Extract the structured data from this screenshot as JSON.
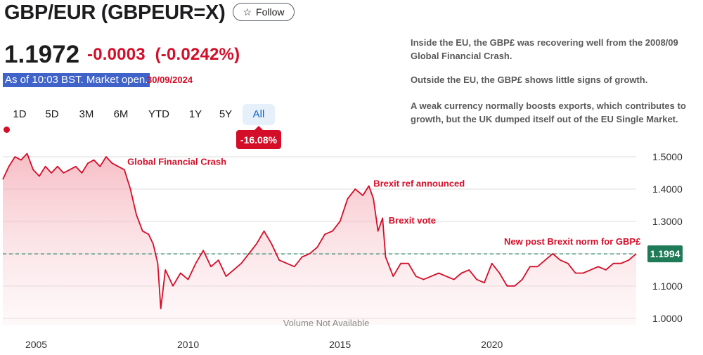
{
  "header": {
    "title": "GBP/EUR (GBPEUR=X)",
    "follow_label": "Follow"
  },
  "quote": {
    "price": "1.1972",
    "change": "-0.0003",
    "change_pct": "(-0.0242%)",
    "as_of": "As of 10:03 BST. Market open.",
    "date": "30/09/2024"
  },
  "notes": [
    "Inside the EU, the GBP£ was recovering well from the 2008/09",
    "Global Financial Crash.",
    "Outside the EU, the GBP£ shows little signs of growth.",
    "A weak currency normally boosts exports, which contributes to",
    "growth, but the UK dumped itself out of the EU Single Market."
  ],
  "tabs": [
    {
      "label": "1D",
      "active": false
    },
    {
      "label": "5D",
      "active": false
    },
    {
      "label": "3M",
      "active": false
    },
    {
      "label": "6M",
      "active": false
    },
    {
      "label": "YTD",
      "active": false
    },
    {
      "label": "1Y",
      "active": false
    },
    {
      "label": "5Y",
      "active": false
    },
    {
      "label": "All",
      "active": true
    }
  ],
  "period_change": "-16.08%",
  "colors": {
    "line": "#d40d28",
    "fill": "#f7c9cf",
    "reference": "#2e8b6e",
    "current_label_bg": "#1f7a57",
    "grid": "#dcdcdc"
  },
  "chart_data": {
    "type": "area",
    "x_type": "year",
    "xlim": [
      2003.9,
      2024.75
    ],
    "ylim": [
      0.98,
      1.55
    ],
    "y_ticks": [
      "1.5000",
      "1.4000",
      "1.3000",
      "1.2000",
      "1.1000",
      "1.0000"
    ],
    "y_tick_values": [
      1.5,
      1.4,
      1.3,
      1.2,
      1.1,
      1.0
    ],
    "x_ticks": [
      "2005",
      "2010",
      "2015",
      "2020"
    ],
    "x_tick_values": [
      2005,
      2010,
      2015,
      2020
    ],
    "grid": true,
    "reference_line": 1.1994,
    "current_value_label": "1.1994",
    "volume_label": "Volume Not Available",
    "series": [
      {
        "x": [
          2003.9,
          2004.1,
          2004.3,
          2004.5,
          2004.7,
          2004.9,
          2005.1,
          2005.3,
          2005.5,
          2005.7,
          2005.9,
          2006.1,
          2006.3,
          2006.5,
          2006.7,
          2006.9,
          2007.1,
          2007.3,
          2007.5,
          2007.7,
          2007.9,
          2008.1,
          2008.3,
          2008.5,
          2008.7,
          2008.85,
          2009.0,
          2009.1,
          2009.25,
          2009.5,
          2009.75,
          2010.0,
          2010.25,
          2010.5,
          2010.75,
          2011.0,
          2011.25,
          2011.5,
          2011.75,
          2012.0,
          2012.25,
          2012.5,
          2012.75,
          2013.0,
          2013.25,
          2013.5,
          2013.75,
          2014.0,
          2014.25,
          2014.5,
          2014.75,
          2015.0,
          2015.25,
          2015.5,
          2015.75,
          2015.95,
          2016.1,
          2016.25,
          2016.4,
          2016.5,
          2016.75,
          2017.0,
          2017.25,
          2017.5,
          2017.75,
          2018.0,
          2018.25,
          2018.5,
          2018.75,
          2019.0,
          2019.25,
          2019.5,
          2019.75,
          2020.0,
          2020.25,
          2020.5,
          2020.75,
          2021.0,
          2021.25,
          2021.5,
          2021.75,
          2022.0,
          2022.25,
          2022.5,
          2022.75,
          2023.0,
          2023.25,
          2023.5,
          2023.75,
          2024.0,
          2024.25,
          2024.5,
          2024.75
        ],
        "y": [
          1.43,
          1.47,
          1.5,
          1.49,
          1.51,
          1.46,
          1.44,
          1.47,
          1.45,
          1.47,
          1.45,
          1.46,
          1.47,
          1.45,
          1.48,
          1.49,
          1.47,
          1.5,
          1.48,
          1.47,
          1.46,
          1.4,
          1.32,
          1.27,
          1.26,
          1.23,
          1.17,
          1.03,
          1.15,
          1.1,
          1.14,
          1.12,
          1.17,
          1.21,
          1.16,
          1.18,
          1.13,
          1.15,
          1.17,
          1.2,
          1.23,
          1.27,
          1.23,
          1.18,
          1.17,
          1.16,
          1.19,
          1.2,
          1.22,
          1.26,
          1.27,
          1.3,
          1.37,
          1.4,
          1.38,
          1.41,
          1.37,
          1.27,
          1.31,
          1.19,
          1.13,
          1.17,
          1.17,
          1.13,
          1.12,
          1.13,
          1.14,
          1.13,
          1.12,
          1.14,
          1.15,
          1.12,
          1.11,
          1.17,
          1.14,
          1.1,
          1.1,
          1.12,
          1.16,
          1.16,
          1.18,
          1.2,
          1.18,
          1.17,
          1.14,
          1.14,
          1.15,
          1.16,
          1.15,
          1.17,
          1.17,
          1.18,
          1.2
        ]
      }
    ],
    "annotations": [
      {
        "text": "Global Financial Crash",
        "x": 2008.0,
        "y": 1.475
      },
      {
        "text": "Brexit ref announced",
        "x": 2016.1,
        "y": 1.408
      },
      {
        "text": "Brexit vote",
        "x": 2016.6,
        "y": 1.293
      },
      {
        "text": "New post Brexit norm for GBP£",
        "x": 2020.4,
        "y": 1.228
      }
    ]
  }
}
